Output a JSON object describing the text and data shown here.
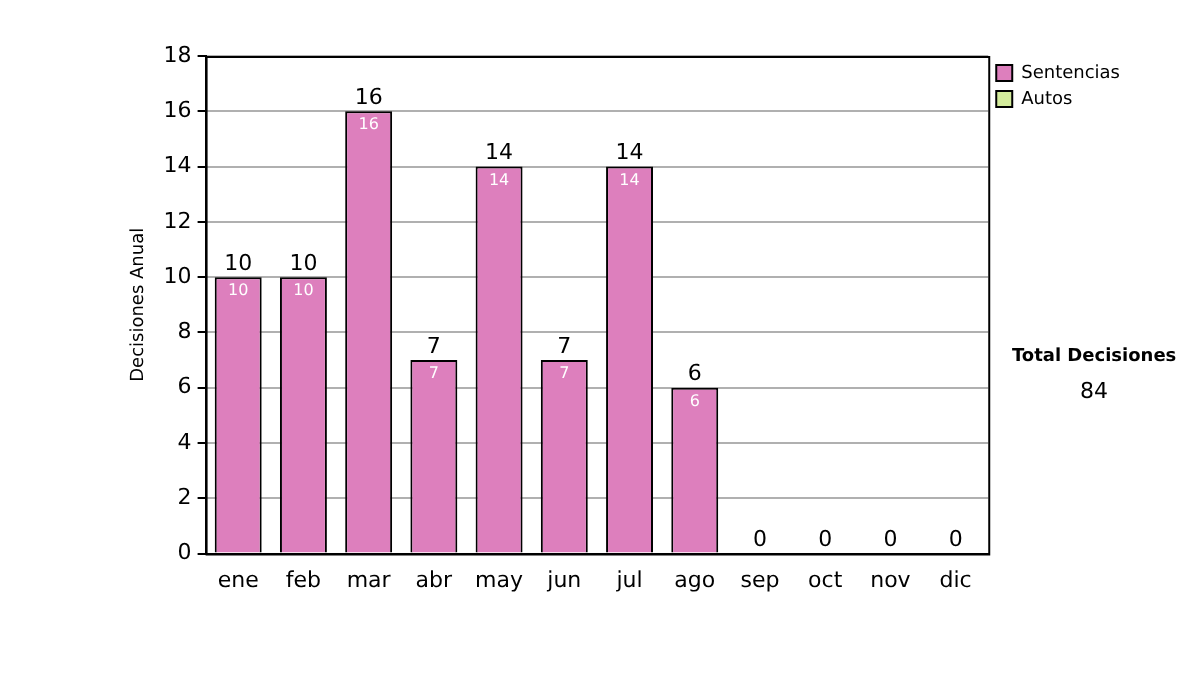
{
  "chart_data": {
    "type": "bar",
    "ylabel": "Decisiones Anual",
    "categories": [
      "ene",
      "feb",
      "mar",
      "abr",
      "may",
      "jun",
      "jul",
      "ago",
      "sep",
      "oct",
      "nov",
      "dic"
    ],
    "series": [
      {
        "name": "Sentencias",
        "color": "#dd7fbd",
        "values": [
          10,
          10,
          16,
          7,
          14,
          7,
          14,
          6,
          0,
          0,
          0,
          0
        ],
        "value_labels": [
          "10",
          "10",
          "16",
          "7",
          "14",
          "7",
          "14",
          "6",
          null,
          null,
          null,
          null
        ]
      },
      {
        "name": "Autos",
        "color": "#d4ec9c",
        "values": [
          0,
          0,
          0,
          0,
          0,
          0,
          0,
          0,
          0,
          0,
          0,
          0
        ]
      }
    ],
    "stacked": true,
    "totals": [
      "10",
      "10",
      "16",
      "7",
      "14",
      "7",
      "14",
      "6",
      "0",
      "0",
      "0",
      "0"
    ],
    "ylim": [
      0,
      18
    ],
    "yticks": [
      0,
      2,
      4,
      6,
      8,
      10,
      12,
      14,
      16,
      18
    ],
    "grid": "y",
    "legend": "right",
    "annotations": [
      "Total Decisiones",
      "84"
    ]
  }
}
